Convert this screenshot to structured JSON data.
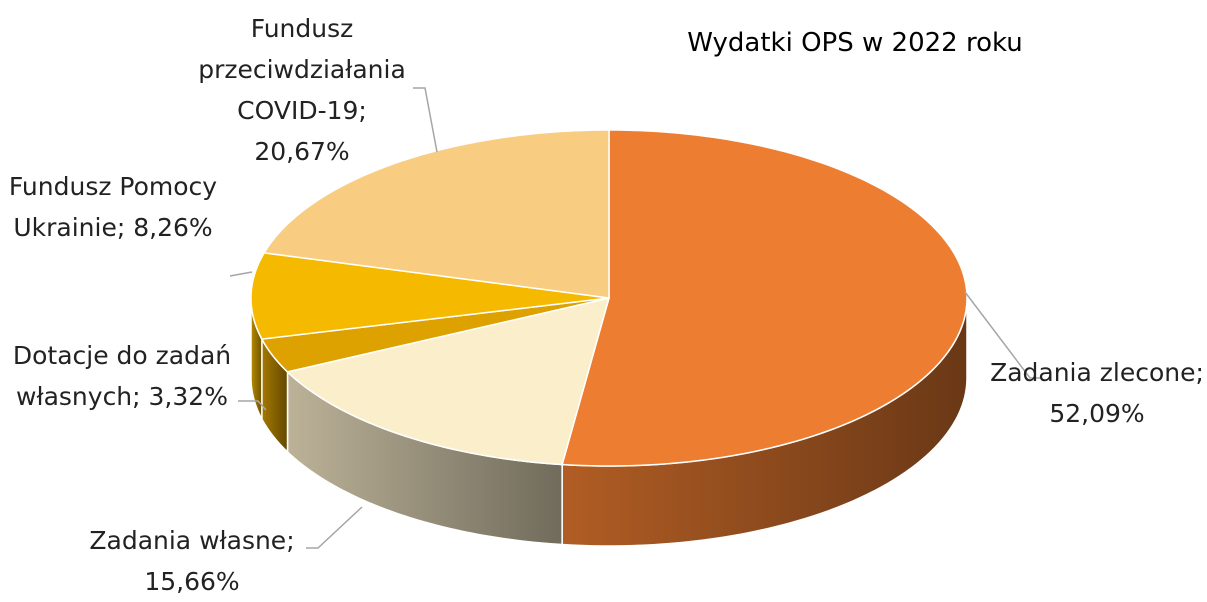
{
  "chart_data": {
    "type": "pie3d",
    "title": "Wydatki OPS w 2022 roku",
    "values": [
      52.09,
      15.66,
      3.32,
      8.26,
      20.67
    ],
    "value_labels": [
      "Zadania zlecone; 52,09%",
      "Zadania własne; 15,66%",
      "Dotacje do zadań własnych; 3,32%",
      "Fundusz Pomocy Ukrainie; 8,26%",
      "Fundusz przeciwdziałania COVID-19; 20,67%"
    ],
    "colors": [
      "#ED7D31",
      "#FBEECB",
      "#DDA200",
      "#F5BA00",
      "#F8CD82"
    ]
  }
}
